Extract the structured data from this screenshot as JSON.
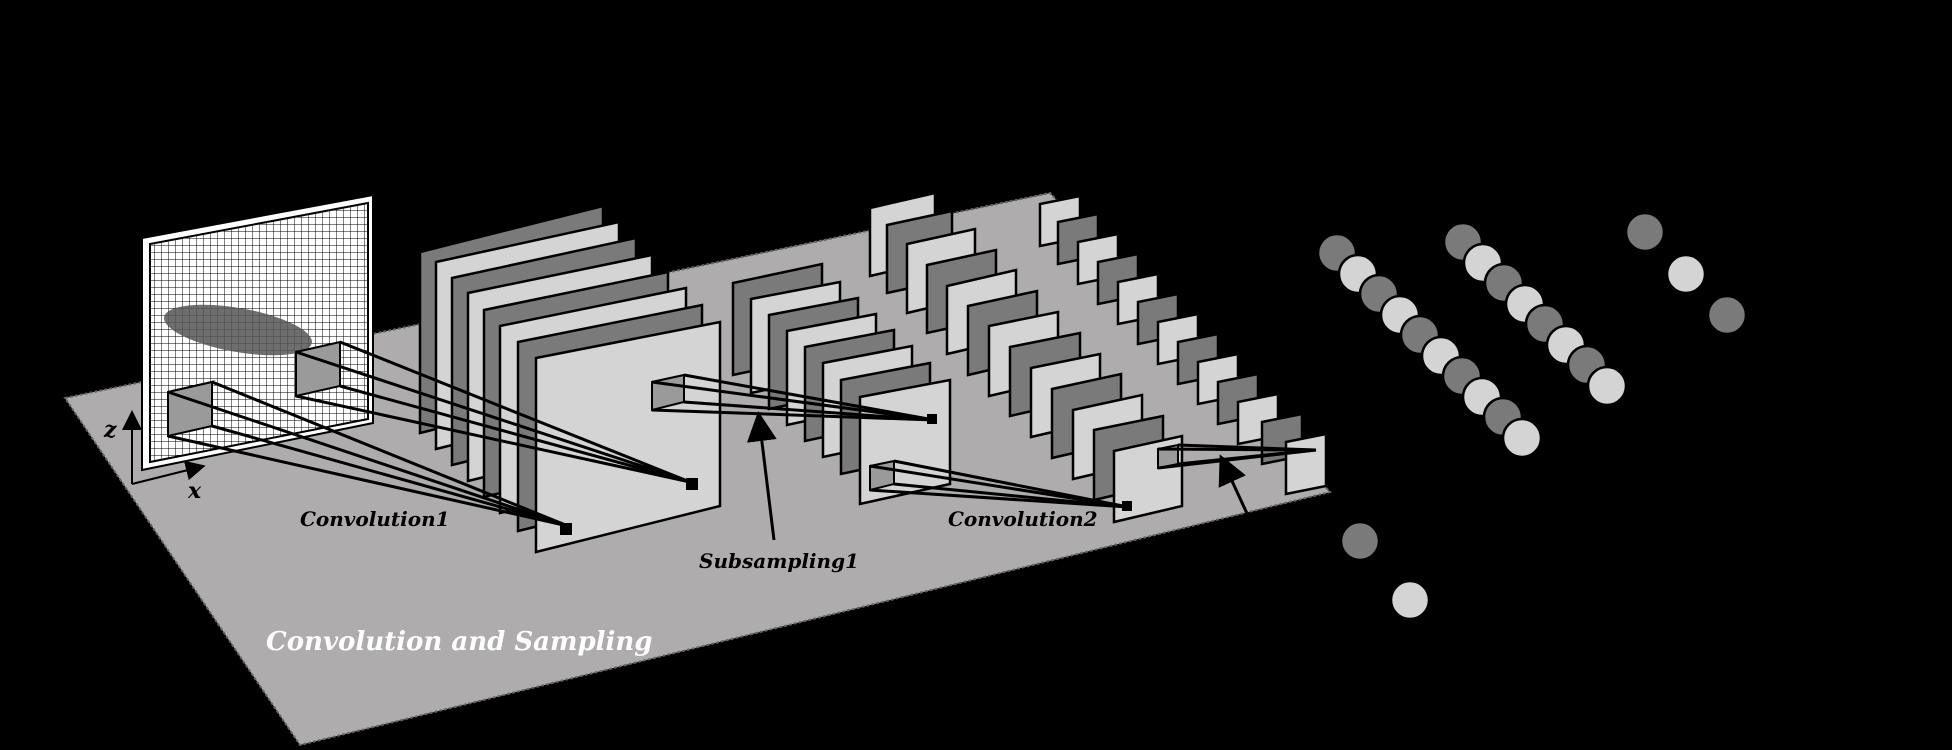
{
  "labels": {
    "axis_z": "z",
    "axis_x": "x",
    "convolution1": "Convolution1",
    "subsampling1": "Subsampling1",
    "convolution2": "Convolution2",
    "stage_title": "Convolution and Sampling"
  },
  "colors": {
    "background": "#000000",
    "platform": "#aeacac",
    "map_dark": "#7a7a7a",
    "map_light": "#d4d4d4",
    "input_grid": "#ffffff",
    "neuron_dark": "#7a7a7a",
    "neuron_light": "#d4d4d4"
  }
}
